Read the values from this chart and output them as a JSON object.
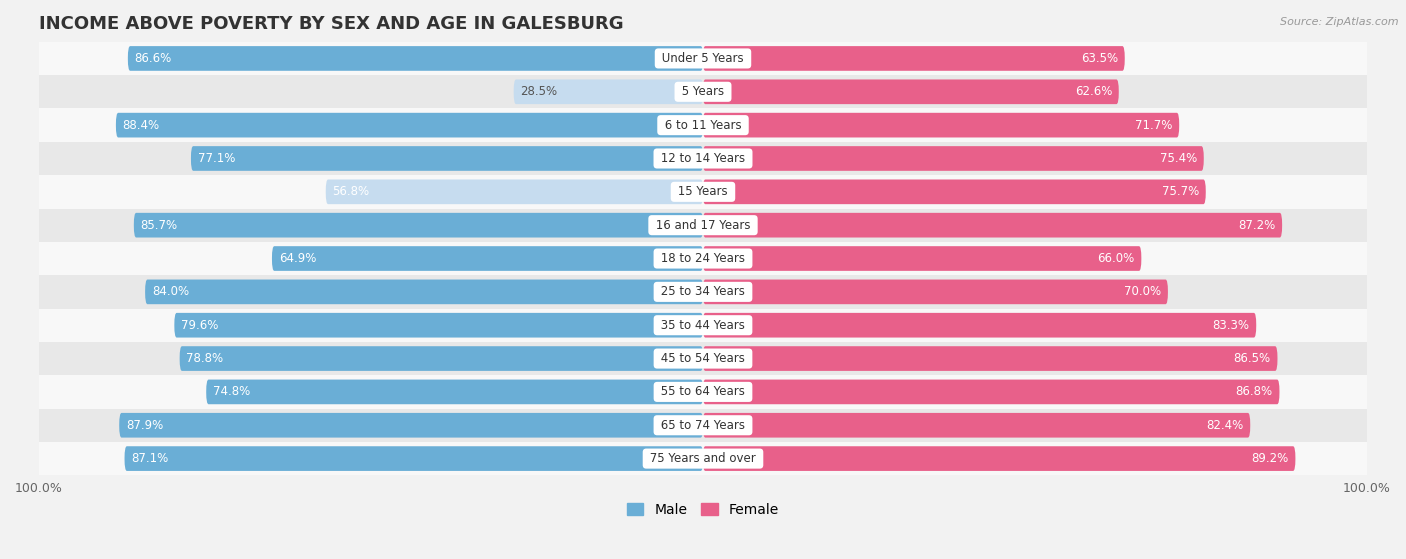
{
  "title": "INCOME ABOVE POVERTY BY SEX AND AGE IN GALESBURG",
  "source": "Source: ZipAtlas.com",
  "categories": [
    "Under 5 Years",
    "5 Years",
    "6 to 11 Years",
    "12 to 14 Years",
    "15 Years",
    "16 and 17 Years",
    "18 to 24 Years",
    "25 to 34 Years",
    "35 to 44 Years",
    "45 to 54 Years",
    "55 to 64 Years",
    "65 to 74 Years",
    "75 Years and over"
  ],
  "male_values": [
    86.6,
    28.5,
    88.4,
    77.1,
    56.8,
    85.7,
    64.9,
    84.0,
    79.6,
    78.8,
    74.8,
    87.9,
    87.1
  ],
  "female_values": [
    63.5,
    62.6,
    71.7,
    75.4,
    75.7,
    87.2,
    66.0,
    70.0,
    83.3,
    86.5,
    86.8,
    82.4,
    89.2
  ],
  "male_color_dark": "#6aaed6",
  "male_color_light": "#c6dcef",
  "female_color_dark": "#e8608a",
  "female_color_light": "#f5c0d4",
  "bg_color": "#f2f2f2",
  "row_bg_even": "#f8f8f8",
  "row_bg_odd": "#e8e8e8",
  "title_fontsize": 13,
  "label_fontsize": 8.5,
  "tick_fontsize": 9,
  "legend_fontsize": 10,
  "bar_height": 0.72,
  "category_label_color": "#333333"
}
